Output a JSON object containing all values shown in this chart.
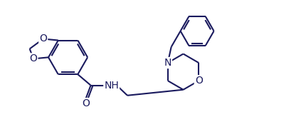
{
  "bg_color": "#ffffff",
  "line_color": "#1a1a5e",
  "bond_width": 1.5,
  "font_size": 10,
  "figsize": [
    4.3,
    1.85
  ],
  "dpi": 100,
  "xlim": [
    0,
    10
  ],
  "ylim": [
    0,
    4.5
  ]
}
